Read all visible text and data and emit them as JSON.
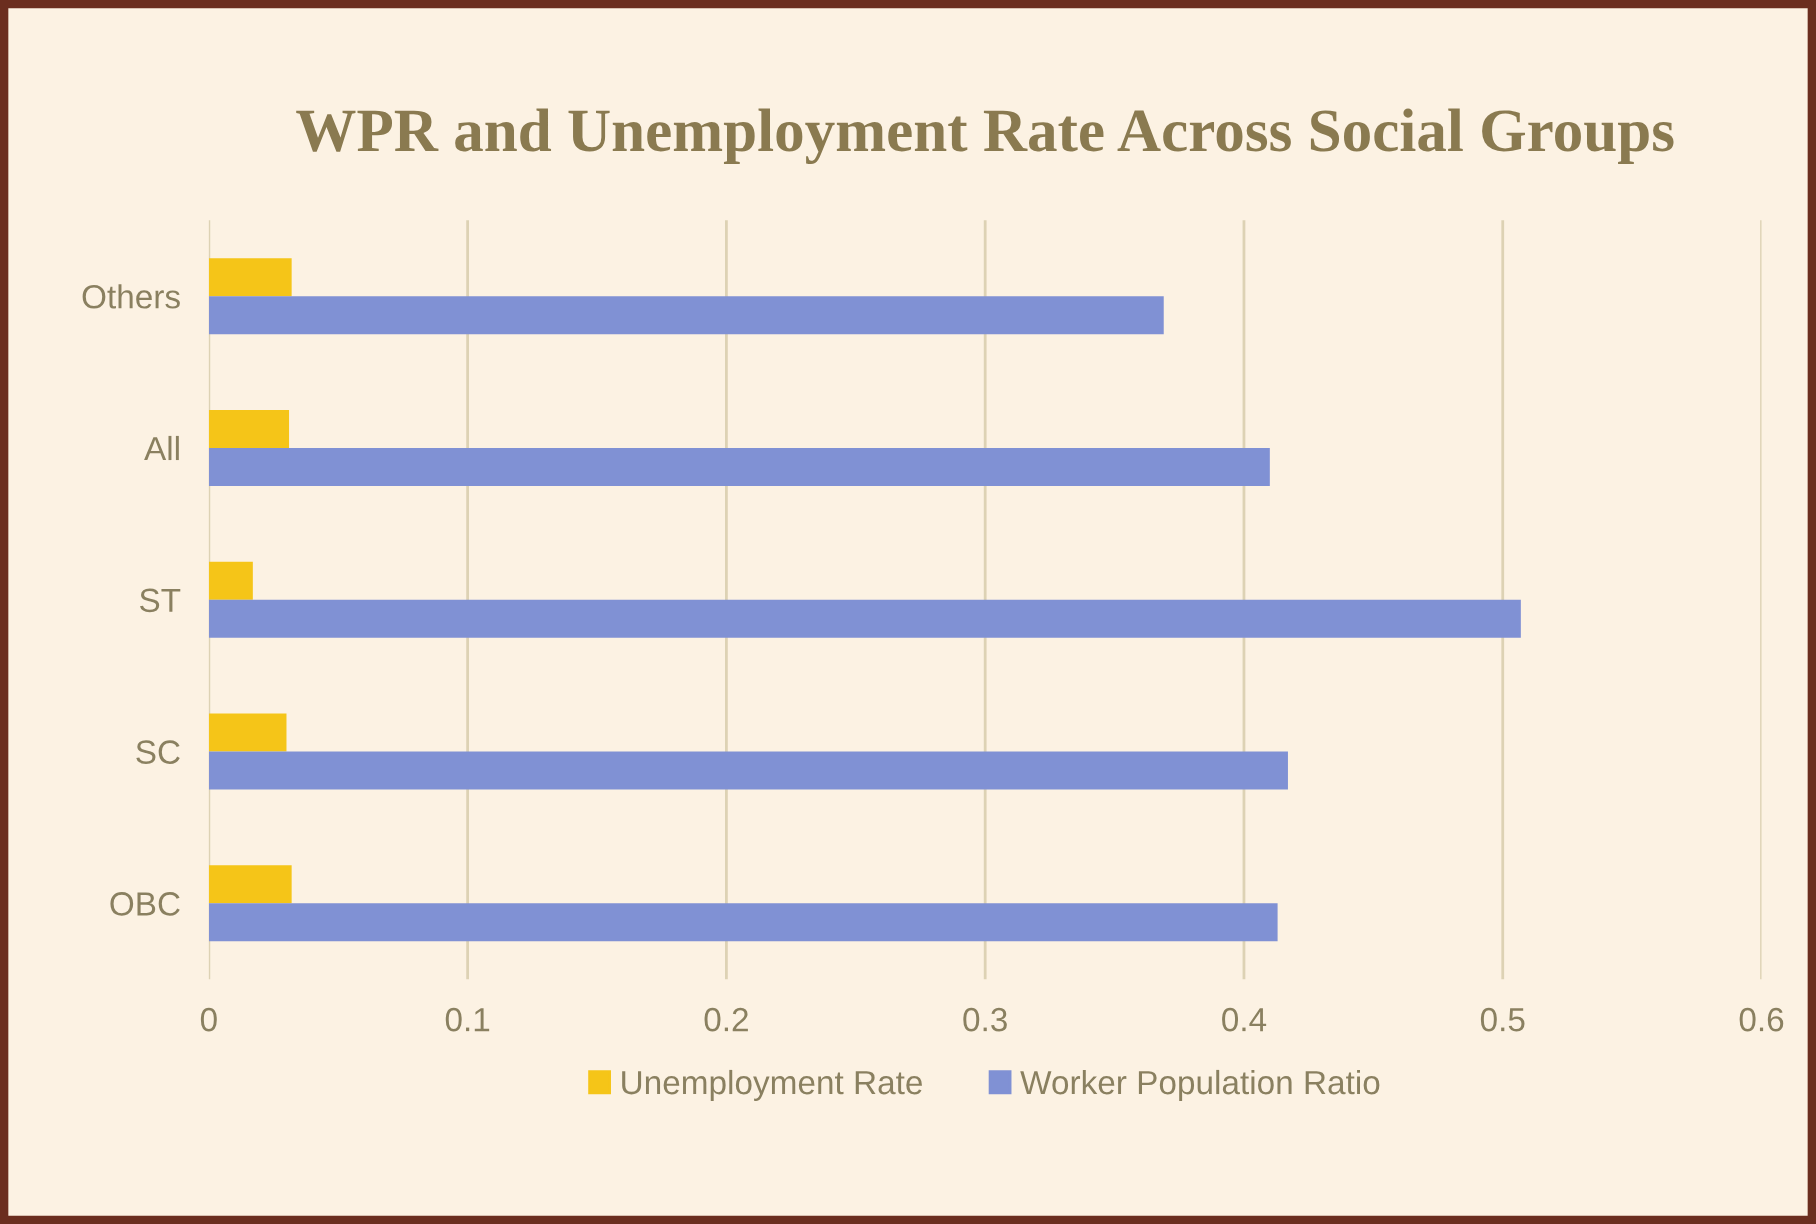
{
  "chart_data": {
    "type": "bar",
    "orientation": "horizontal",
    "title": "WPR and Unemployment Rate Across Social Groups",
    "categories": [
      "Others",
      "All",
      "ST",
      "SC",
      "OBC"
    ],
    "series": [
      {
        "name": "Unemployment Rate",
        "color": "#f5c518",
        "values": [
          0.032,
          0.031,
          0.017,
          0.03,
          0.032
        ]
      },
      {
        "name": "Worker Population Ratio",
        "color": "#8091d4",
        "values": [
          0.369,
          0.41,
          0.507,
          0.417,
          0.413
        ]
      }
    ],
    "xlim": [
      0,
      0.6
    ],
    "xticks": [
      0,
      0.1,
      0.2,
      0.3,
      0.4,
      0.5,
      0.6
    ],
    "grid": "x",
    "legend": "bottom"
  }
}
